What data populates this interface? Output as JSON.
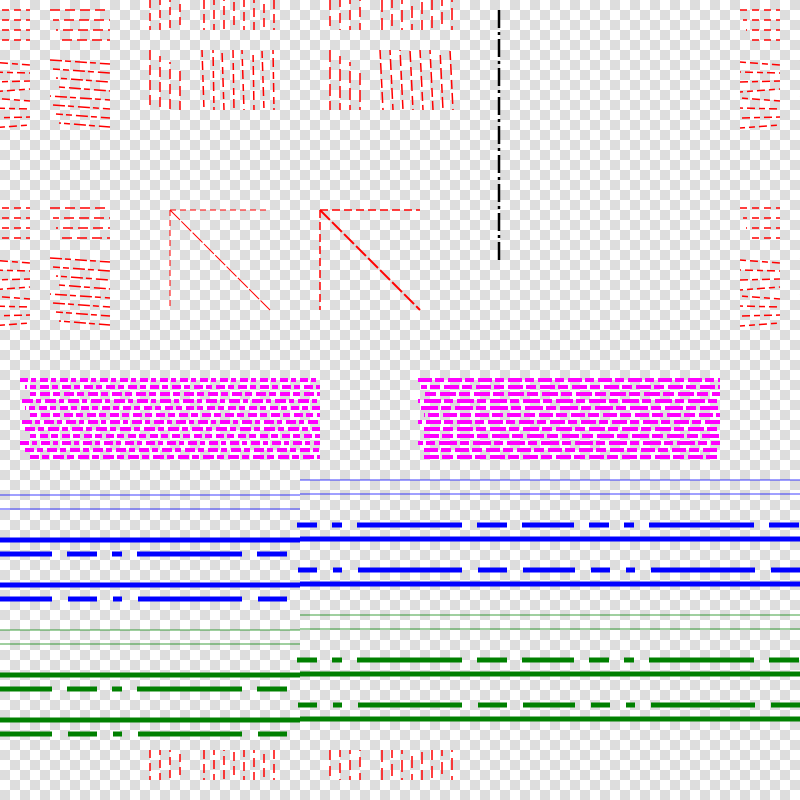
{
  "canvas": {
    "background": "checkerboard",
    "colors": {
      "red": "#ff0000",
      "black": "#000000",
      "magenta": "#ff00ff",
      "blue": "#0000ff",
      "green": "#008000",
      "checker_light": "#ffffff",
      "checker_dark": "#dddddd"
    },
    "groups": [
      {
        "name": "red-horizontal-dash-blocks",
        "color": "red"
      },
      {
        "name": "red-vertical-dash-blocks",
        "color": "red"
      },
      {
        "name": "red-dashed-triangles",
        "color": "red"
      },
      {
        "name": "black-dash-dot-vertical-line",
        "color": "black"
      },
      {
        "name": "magenta-dash-blocks",
        "color": "magenta"
      },
      {
        "name": "blue-line-set",
        "color": "blue"
      },
      {
        "name": "green-line-set",
        "color": "green"
      }
    ]
  }
}
